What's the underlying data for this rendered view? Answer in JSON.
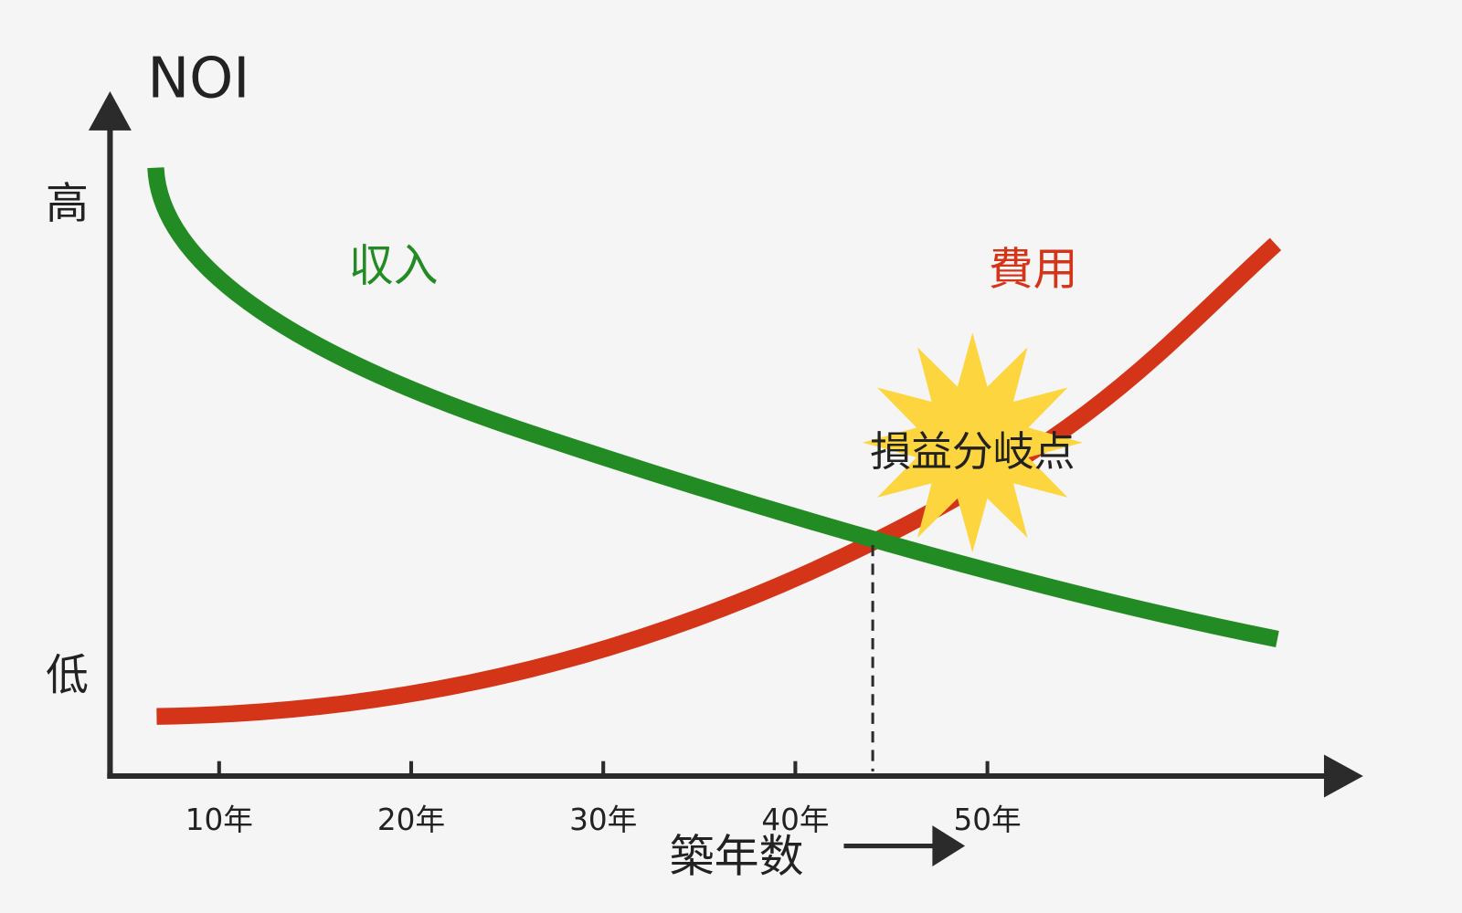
{
  "y_axis": {
    "title": "NOI",
    "high": "高",
    "low": "低"
  },
  "x_axis": {
    "title": "築年数",
    "ticks": [
      "10年",
      "20年",
      "30年",
      "40年",
      "50年"
    ]
  },
  "curves": {
    "income": "収入",
    "cost": "費用"
  },
  "annotation": "損益分岐点"
}
